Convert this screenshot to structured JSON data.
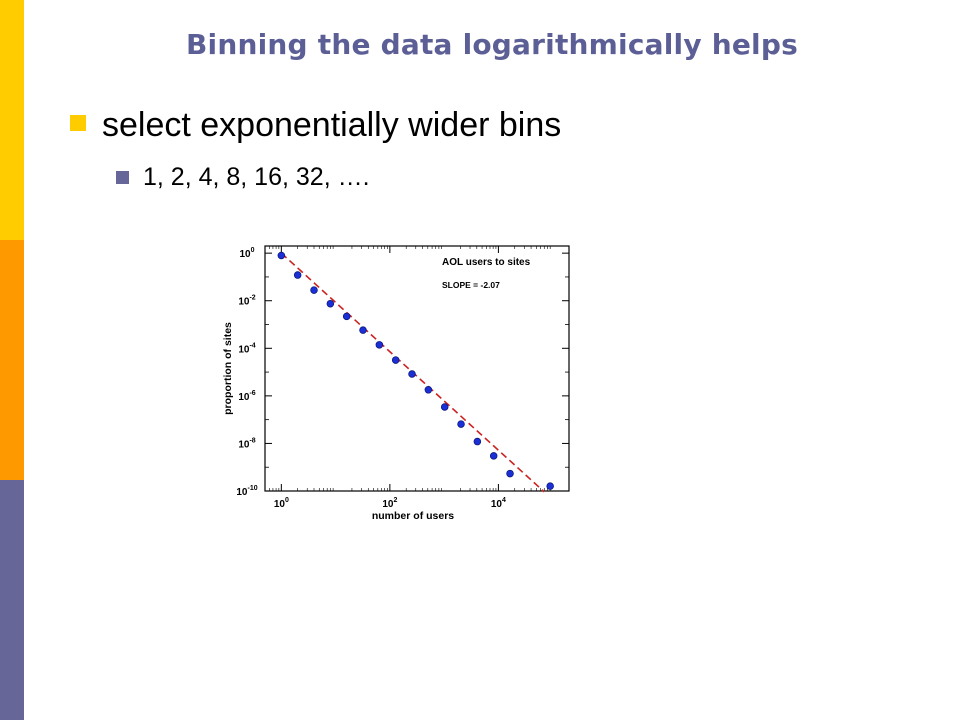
{
  "slide": {
    "title": "Binning the data logarithmically helps",
    "bullets": [
      {
        "text": "select exponentially wider bins",
        "level": 1,
        "marker_color": "#ffcc00"
      },
      {
        "text": "1, 2, 4, 8, 16, 32, ….",
        "level": 2,
        "marker_color": "#666699"
      }
    ],
    "accent_colors": {
      "bar_top": "#ffcc00",
      "bar_mid": "#ff9900",
      "bar_bottom": "#666699",
      "title": "#5c5e96"
    }
  },
  "chart_data": {
    "type": "scatter",
    "x_scale": "log",
    "y_scale": "log",
    "xlabel": "number of users",
    "ylabel": "proportion of sites",
    "xlim": [
      0.5,
      200000
    ],
    "ylim": [
      1e-10,
      2
    ],
    "x_ticks": [
      {
        "base": "10",
        "exp": "0",
        "value": 1
      },
      {
        "base": "10",
        "exp": "2",
        "value": 100
      },
      {
        "base": "10",
        "exp": "4",
        "value": 10000
      }
    ],
    "y_ticks": [
      {
        "base": "10",
        "exp": "0",
        "value": 1
      },
      {
        "base": "10",
        "exp": "-2",
        "value": 0.01
      },
      {
        "base": "10",
        "exp": "-4",
        "value": 0.0001
      },
      {
        "base": "10",
        "exp": "-6",
        "value": 1e-06
      },
      {
        "base": "10",
        "exp": "-8",
        "value": 1e-08
      },
      {
        "base": "10",
        "exp": "-10",
        "value": 1e-10
      }
    ],
    "grid": false,
    "annotations": [
      "AOL users to sites",
      "SLOPE = -2.07"
    ],
    "points": [
      {
        "x": 1,
        "y": 0.8
      },
      {
        "x": 2,
        "y": 0.12
      },
      {
        "x": 4,
        "y": 0.028
      },
      {
        "x": 8,
        "y": 0.0075
      },
      {
        "x": 16,
        "y": 0.0022
      },
      {
        "x": 32,
        "y": 0.00058
      },
      {
        "x": 64,
        "y": 0.00014
      },
      {
        "x": 128,
        "y": 3.2e-05
      },
      {
        "x": 256,
        "y": 8.3e-06
      },
      {
        "x": 512,
        "y": 1.8e-06
      },
      {
        "x": 1024,
        "y": 3.4e-07
      },
      {
        "x": 2048,
        "y": 6.5e-08
      },
      {
        "x": 4096,
        "y": 1.2e-08
      },
      {
        "x": 8192,
        "y": 3e-09
      },
      {
        "x": 16384,
        "y": 5.4e-10
      },
      {
        "x": 90000,
        "y": 1.6e-10
      }
    ],
    "fit_line": {
      "x": [
        1,
        70000
      ],
      "y": [
        1.0,
        9.2e-11
      ],
      "color": "#cc2222"
    },
    "point_color": "#1a2fd6"
  }
}
